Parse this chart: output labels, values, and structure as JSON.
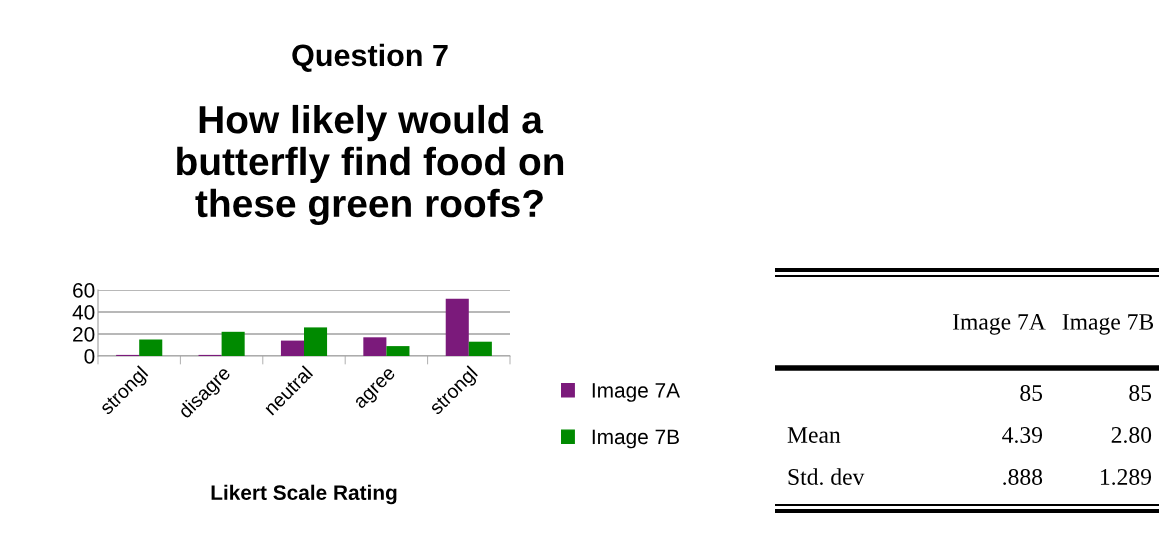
{
  "chart_data": [
    {
      "type": "bar",
      "title": "Question 7",
      "subtitle": "How likely would a\nbutterfly find food on\nthese green roofs?",
      "xlabel": "Likert Scale Rating",
      "categories": [
        "strongl",
        "disagre",
        "neutral",
        "agree",
        "strongl"
      ],
      "series": [
        {
          "name": "Image 7A",
          "color": "#7b1a7b",
          "values": [
            1,
            1,
            14,
            17,
            52
          ]
        },
        {
          "name": "Image 7B",
          "color": "#008a00",
          "values": [
            15,
            22,
            26,
            9,
            13
          ]
        }
      ],
      "ylim": [
        0,
        60
      ],
      "yticks": [
        0,
        20,
        40,
        60
      ],
      "grid": "y",
      "legend": "right"
    },
    {
      "type": "other",
      "annotations": [
        "Image 7A",
        "Image 7B",
        "85",
        "85",
        "Mean",
        "4.39",
        "2.80",
        "Std. dev",
        ".888",
        "1.289"
      ]
    }
  ]
}
